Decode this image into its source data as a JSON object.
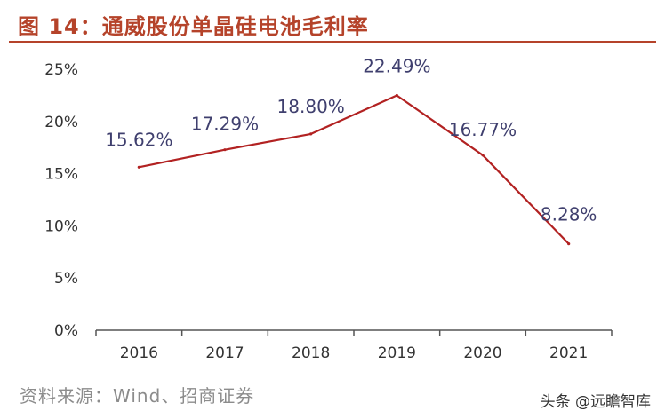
{
  "header": {
    "title": "图 14：通威股份单晶硅电池毛利率"
  },
  "footer": {
    "source": "资料来源：Wind、招商证券",
    "watermark": "头条 @远瞻智库"
  },
  "colors": {
    "title": "#b5432a",
    "line": "#b22222",
    "axis": "#555555",
    "data_label": "#3f3f6e"
  },
  "chart_data": {
    "type": "line",
    "title": "图 14：通威股份单晶硅电池毛利率",
    "xlabel": "",
    "ylabel": "",
    "categories": [
      "2016",
      "2017",
      "2018",
      "2019",
      "2020",
      "2021"
    ],
    "series": [
      {
        "values": [
          15.62,
          17.29,
          18.8,
          22.49,
          16.77,
          8.28
        ]
      }
    ],
    "data_labels": [
      "15.62%",
      "17.29%",
      "18.80%",
      "22.49%",
      "16.77%",
      "8.28%"
    ],
    "yticks": [
      0,
      5,
      10,
      15,
      20,
      25
    ],
    "ytick_labels": [
      "0%",
      "5%",
      "10%",
      "15%",
      "20%",
      "25%"
    ],
    "ylim": [
      0,
      25
    ],
    "grid": false,
    "legend": "none"
  }
}
